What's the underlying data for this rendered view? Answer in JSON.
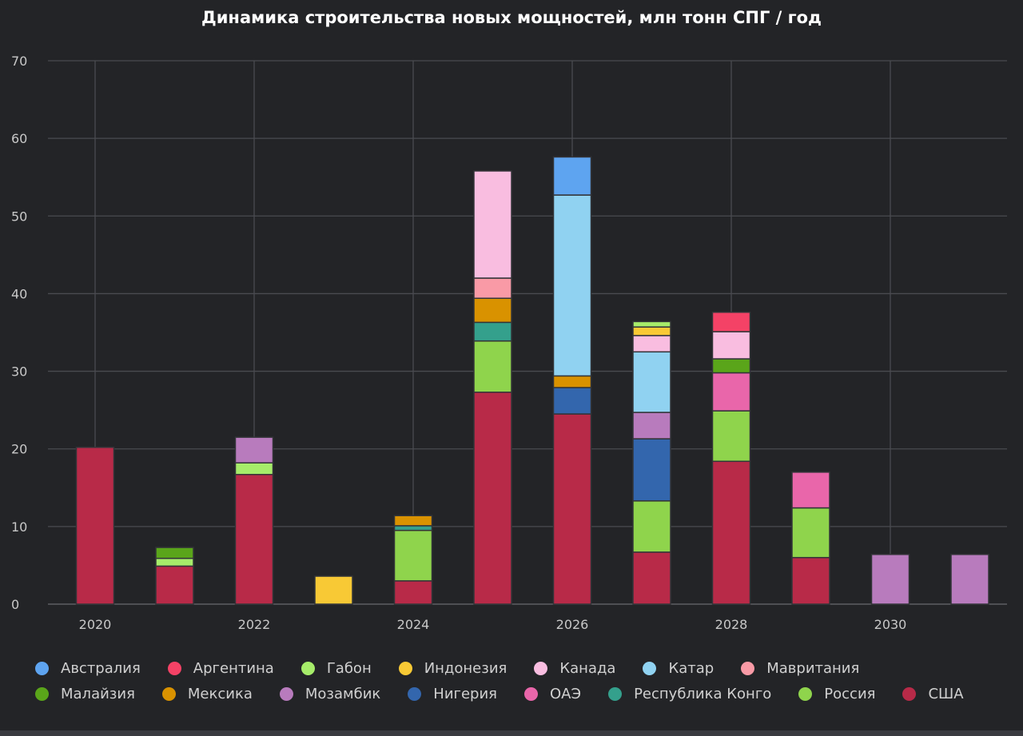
{
  "chart_data": {
    "type": "bar",
    "stacked": true,
    "title": "Динамика строительства новых мощностей, млн тонн СПГ / год",
    "xlabel": "",
    "ylabel": "",
    "ylim": [
      0,
      70
    ],
    "yticks": [
      "0",
      "10",
      "20",
      "30",
      "40",
      "50",
      "60",
      "70"
    ],
    "xticks": [
      "2020",
      "2022",
      "2024",
      "2026",
      "2028",
      "2030"
    ],
    "categories": [
      2020,
      2021,
      2022,
      2023,
      2024,
      2025,
      2026,
      2027,
      2028,
      2029,
      2030,
      2031
    ],
    "grid": true,
    "legend_placement": "bottom",
    "legend": [
      {
        "name": "Австралия",
        "color": "#5ea4f0"
      },
      {
        "name": "Аргентина",
        "color": "#f44266"
      },
      {
        "name": "Габон",
        "color": "#a6ec6a"
      },
      {
        "name": "Индонезия",
        "color": "#f8c935"
      },
      {
        "name": "Канада",
        "color": "#f9bde0"
      },
      {
        "name": "Катар",
        "color": "#90d2f1"
      },
      {
        "name": "Мавритания",
        "color": "#f99aa6"
      },
      {
        "name": "Малайзия",
        "color": "#5aa51a"
      },
      {
        "name": "Мексика",
        "color": "#d99200"
      },
      {
        "name": "Мозамбик",
        "color": "#b87bbd"
      },
      {
        "name": "Нигерия",
        "color": "#3366ad"
      },
      {
        "name": "ОАЭ",
        "color": "#e966aa"
      },
      {
        "name": "Республика Конго",
        "color": "#34a08c"
      },
      {
        "name": "Россия",
        "color": "#8fd44c"
      },
      {
        "name": "США",
        "color": "#b82a48"
      }
    ],
    "stacks": [
      [
        [
          "США",
          20.2
        ]
      ],
      [
        [
          "США",
          4.9
        ],
        [
          "Габон",
          1.0
        ],
        [
          "Малайзия",
          1.4
        ]
      ],
      [
        [
          "США",
          16.7
        ],
        [
          "Габон",
          1.5
        ],
        [
          "Мозамбик",
          3.3
        ]
      ],
      [
        [
          "Индонезия",
          3.6
        ]
      ],
      [
        [
          "США",
          3.0
        ],
        [
          "Россия",
          6.5
        ],
        [
          "Республика Конго",
          0.6
        ],
        [
          "Мексика",
          1.3
        ]
      ],
      [
        [
          "США",
          27.3
        ],
        [
          "Россия",
          6.6
        ],
        [
          "Республика Конго",
          2.4
        ],
        [
          "Мексика",
          3.1
        ],
        [
          "Мавритания",
          2.6
        ],
        [
          "Канада",
          13.8
        ]
      ],
      [
        [
          "США",
          24.5
        ],
        [
          "Нигерия",
          3.4
        ],
        [
          "Мексика",
          1.5
        ],
        [
          "Катар",
          23.3
        ],
        [
          "Австралия",
          4.9
        ]
      ],
      [
        [
          "США",
          6.7
        ],
        [
          "Россия",
          6.6
        ],
        [
          "Нигерия",
          8.0
        ],
        [
          "Мозамбик",
          3.4
        ],
        [
          "Катар",
          7.8
        ],
        [
          "Канада",
          2.1
        ],
        [
          "Индонезия",
          1.1
        ],
        [
          "Габон",
          0.7
        ]
      ],
      [
        [
          "США",
          18.4
        ],
        [
          "Россия",
          6.5
        ],
        [
          "ОАЭ",
          4.9
        ],
        [
          "Малайзия",
          1.8
        ],
        [
          "Канада",
          3.5
        ],
        [
          "Аргентина",
          2.5
        ]
      ],
      [
        [
          "США",
          6.0
        ],
        [
          "Россия",
          6.4
        ],
        [
          "ОАЭ",
          4.6
        ]
      ],
      [
        [
          "Мозамбик",
          6.4
        ]
      ],
      [
        [
          "Мозамбик",
          6.4
        ]
      ]
    ]
  }
}
